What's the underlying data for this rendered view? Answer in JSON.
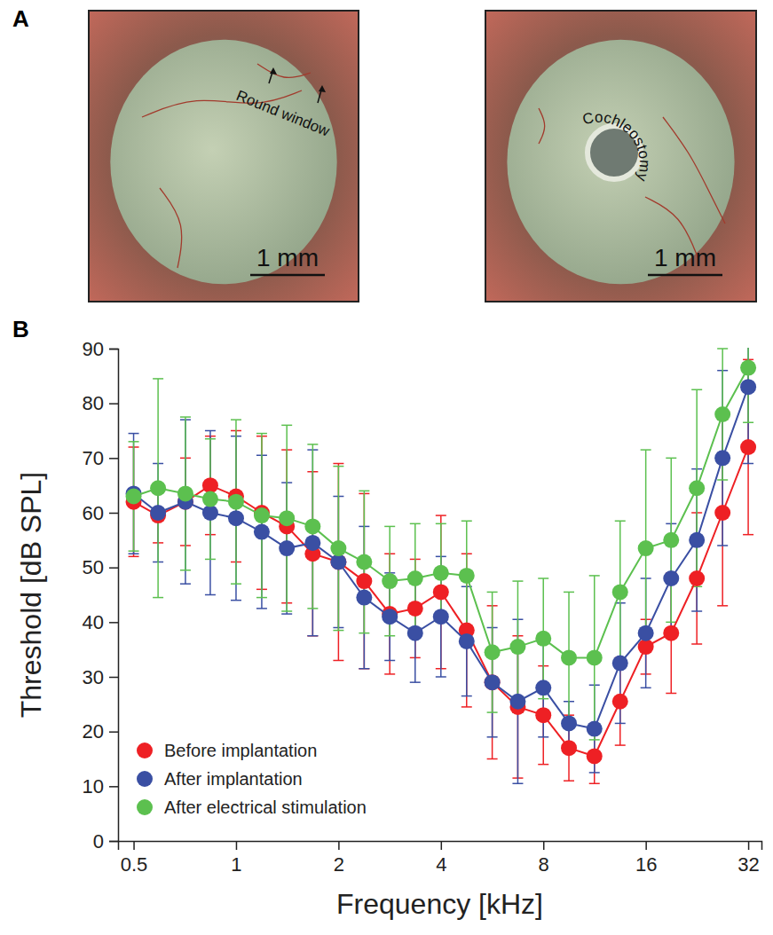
{
  "figure": {
    "panel_labels": [
      "A",
      "B"
    ]
  },
  "photos": [
    {
      "annotation": "Round window",
      "scale_bar": "1 mm"
    },
    {
      "annotation": "Cochleostomy",
      "scale_bar": "1 mm"
    }
  ],
  "chart_data": {
    "type": "line",
    "x_label": "Frequency [kHz]",
    "y_label": "Threshold [dB SPL]",
    "log": "x",
    "grid": false,
    "legend": "lower left",
    "marker": "circle",
    "xlim": [
      0.45,
      35
    ],
    "xticks": [
      0.5,
      1,
      2,
      4,
      8,
      16,
      32
    ],
    "ylim": [
      0,
      90
    ],
    "yticks": [
      0,
      10,
      20,
      30,
      40,
      50,
      60,
      70,
      80,
      90
    ],
    "x": [
      0.5,
      0.59,
      0.71,
      0.84,
      1,
      1.19,
      1.41,
      1.68,
      2,
      2.38,
      2.83,
      3.36,
      4,
      4.76,
      5.66,
      6.73,
      8,
      9.51,
      11.3,
      13.45,
      16,
      19,
      22.6,
      26.9,
      32
    ],
    "series": [
      {
        "name": "Before implantation",
        "color": "#ee2024",
        "values": [
          62,
          59.5,
          62,
          65,
          63,
          60,
          57.5,
          52.5,
          51,
          47.5,
          41.5,
          42.5,
          45.5,
          38.5,
          29,
          24.5,
          23,
          17,
          15.5,
          25.5,
          35.5,
          38,
          48,
          60,
          72
        ],
        "errors": [
          10,
          5,
          8,
          9,
          12,
          14,
          14,
          15,
          18,
          16,
          11,
          9,
          14,
          14,
          14,
          13,
          9,
          6,
          5,
          8,
          5,
          11,
          12,
          17,
          16
        ]
      },
      {
        "name": "After implantation",
        "color": "#3a4fa3",
        "values": [
          63.5,
          60,
          62,
          60,
          59,
          56.5,
          53.5,
          54.5,
          51,
          44.5,
          41,
          38,
          41,
          36.5,
          29,
          25.5,
          28,
          21.5,
          20.5,
          32.5,
          38,
          48,
          55,
          70,
          83
        ],
        "errors": [
          11,
          9,
          15,
          15,
          15,
          14,
          12,
          17,
          12,
          13,
          8,
          9,
          11,
          10,
          10,
          15,
          9,
          4,
          8,
          11,
          10,
          10,
          13,
          16,
          14
        ]
      },
      {
        "name": "After electrical stimulation",
        "color": "#5cc04f",
        "values": [
          63,
          64.5,
          63.5,
          62.5,
          62,
          59.5,
          59,
          57.5,
          53.5,
          51,
          47.5,
          48,
          49,
          48.5,
          34.5,
          35.5,
          37,
          33.5,
          33.5,
          45.5,
          53.5,
          55,
          64.5,
          78,
          86.5
        ],
        "errors": [
          10,
          20,
          14,
          11,
          15,
          15,
          17,
          15,
          15,
          13,
          10,
          10,
          9,
          10,
          11,
          12,
          11,
          12,
          15,
          13,
          18,
          15,
          18,
          12,
          10
        ]
      }
    ]
  }
}
